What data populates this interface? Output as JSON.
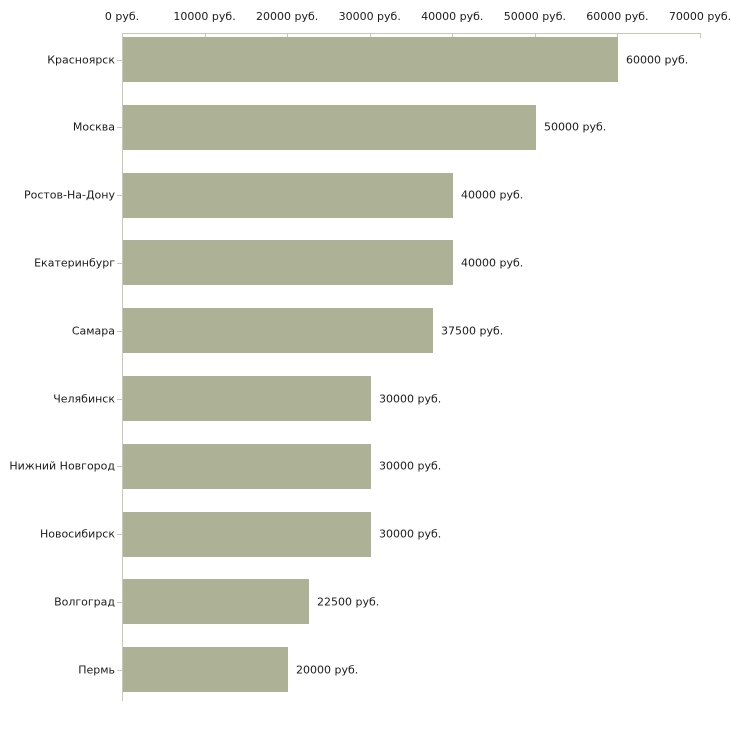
{
  "chart_data": {
    "type": "bar",
    "orientation": "horizontal",
    "title": "",
    "xlabel": "",
    "ylabel": "",
    "categories": [
      "Красноярск",
      "Москва",
      "Ростов-На-Дону",
      "Екатеринбург",
      "Самара",
      "Челябинск",
      "Нижний Новгород",
      "Новосибирск",
      "Волгоград",
      "Пермь"
    ],
    "values": [
      60000,
      50000,
      40000,
      40000,
      37500,
      30000,
      30000,
      30000,
      22500,
      20000
    ],
    "value_labels": [
      "60000 руб.",
      "50000 руб.",
      "40000 руб.",
      "40000 руб.",
      "37500 руб.",
      "30000 руб.",
      "30000 руб.",
      "30000 руб.",
      "22500 руб.",
      "20000 руб."
    ],
    "x_ticks": [
      0,
      10000,
      20000,
      30000,
      40000,
      50000,
      60000,
      70000
    ],
    "x_tick_labels": [
      "0 руб.",
      "10000 руб.",
      "20000 руб.",
      "30000 руб.",
      "40000 руб.",
      "50000 руб.",
      "60000 руб.",
      "70000 руб."
    ],
    "xlim": [
      0,
      70000
    ],
    "axis_position": "top",
    "grid": false,
    "legend": null,
    "bar_color": "#adb296",
    "axis_color": "#c6c9b4",
    "text_color": "#1c1c1c",
    "background_color": "#ffffff"
  }
}
